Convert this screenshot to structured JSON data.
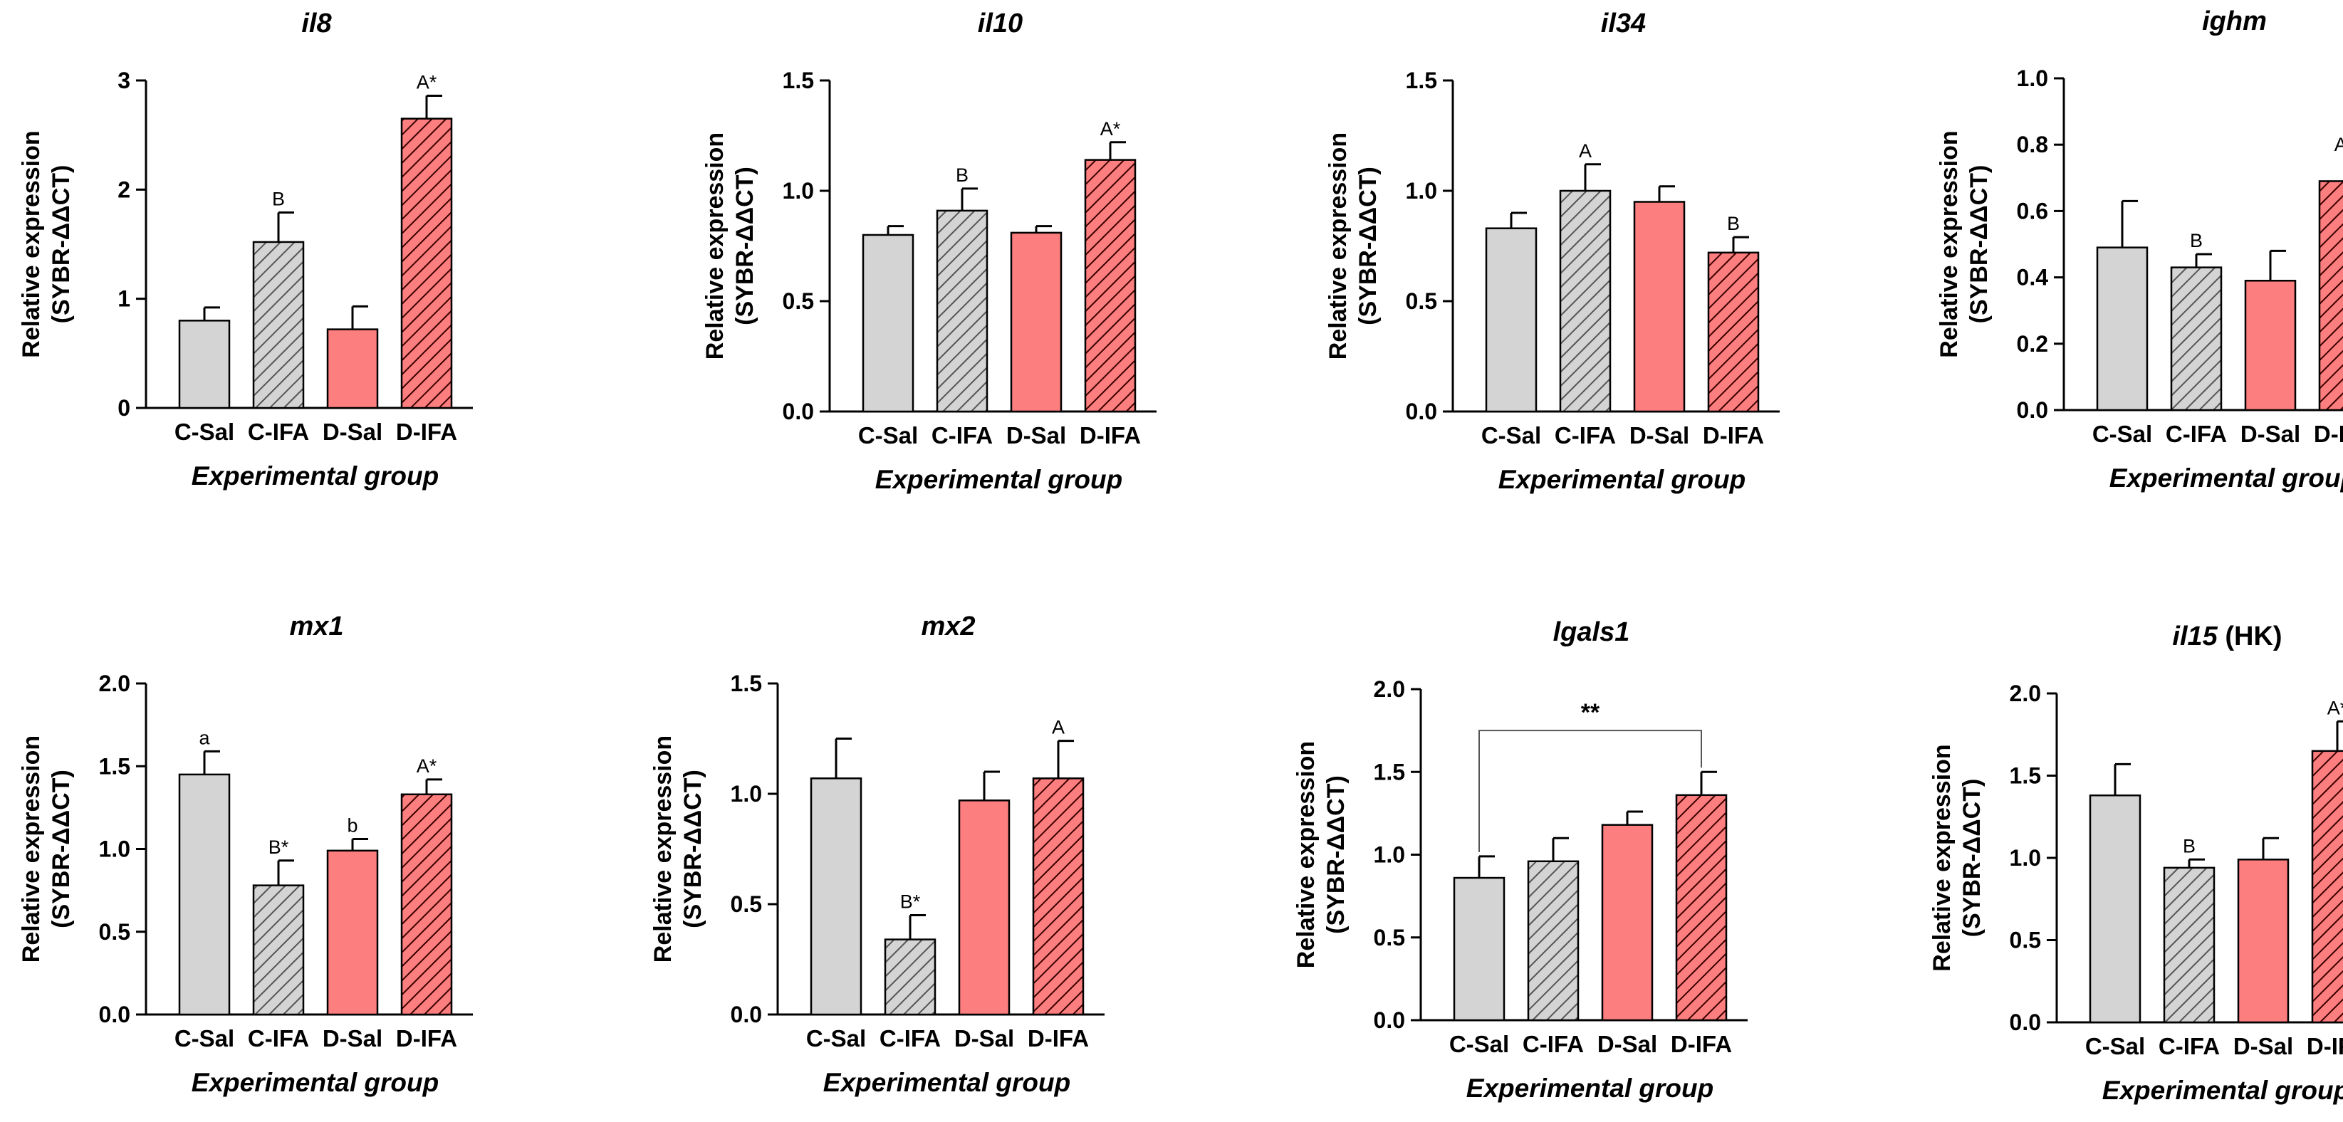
{
  "figure": {
    "background": "#ffffff"
  },
  "styles": {
    "control_fill": "#d4d4d4",
    "diet_fill": "#fd7e7e",
    "stroke": "#000000",
    "hatch_stroke_control": "#555555",
    "hatch_stroke_diet": "#3a0000"
  },
  "chart_data": [
    {
      "type": "bar",
      "title": "il8",
      "title_suffix": "",
      "xlabel": "Experimental group",
      "ylabel": [
        "Relative expression",
        "(SYBR-ΔΔCT)"
      ],
      "categories": [
        "C-Sal",
        "C-IFA",
        "D-Sal",
        "D-IFA"
      ],
      "values": [
        0.8,
        1.52,
        0.72,
        2.65
      ],
      "errors": [
        0.12,
        0.27,
        0.21,
        0.21
      ],
      "annotations": [
        "",
        "B",
        "",
        "A*"
      ],
      "ylim": [
        0,
        3
      ],
      "yticks": [
        "0",
        "1",
        "2",
        "3"
      ]
    },
    {
      "type": "bar",
      "title": "il10",
      "title_suffix": "",
      "xlabel": "Experimental group",
      "ylabel": [
        "Relative expression",
        "(SYBR-ΔΔCT)"
      ],
      "categories": [
        "C-Sal",
        "C-IFA",
        "D-Sal",
        "D-IFA"
      ],
      "values": [
        0.8,
        0.91,
        0.81,
        1.14
      ],
      "errors": [
        0.04,
        0.1,
        0.03,
        0.08
      ],
      "annotations": [
        "",
        "B",
        "",
        "A*"
      ],
      "ylim": [
        0,
        1.5
      ],
      "yticks": [
        "0.0",
        "0.5",
        "1.0",
        "1.5"
      ]
    },
    {
      "type": "bar",
      "title": "il34",
      "title_suffix": "",
      "xlabel": "Experimental group",
      "ylabel": [
        "Relative expression",
        "(SYBR-ΔΔCT)"
      ],
      "categories": [
        "C-Sal",
        "C-IFA",
        "D-Sal",
        "D-IFA"
      ],
      "values": [
        0.83,
        1.0,
        0.95,
        0.72
      ],
      "errors": [
        0.07,
        0.12,
        0.07,
        0.07
      ],
      "annotations": [
        "",
        "A",
        "",
        "B"
      ],
      "ylim": [
        0,
        1.5
      ],
      "yticks": [
        "0.0",
        "0.5",
        "1.0",
        "1.5"
      ]
    },
    {
      "type": "bar",
      "title": "ighm",
      "title_suffix": "",
      "xlabel": "Experimental group",
      "ylabel": [
        "Relative expression",
        "(SYBR-ΔΔCT)"
      ],
      "categories": [
        "C-Sal",
        "C-IFA",
        "D-Sal",
        "D-IFA"
      ],
      "values": [
        0.49,
        0.43,
        0.39,
        0.69
      ],
      "errors": [
        0.14,
        0.04,
        0.09,
        0.07
      ],
      "annotations": [
        "",
        "B",
        "",
        "A*"
      ],
      "ylim": [
        0,
        1.0
      ],
      "yticks": [
        "0.0",
        "0.2",
        "0.4",
        "0.6",
        "0.8",
        "1.0"
      ]
    },
    {
      "type": "bar",
      "title": "mx1",
      "title_suffix": "",
      "xlabel": "Experimental group",
      "ylabel": [
        "Relative expression",
        "(SYBR-ΔΔCT)"
      ],
      "categories": [
        "C-Sal",
        "C-IFA",
        "D-Sal",
        "D-IFA"
      ],
      "values": [
        1.45,
        0.78,
        0.99,
        1.33
      ],
      "errors": [
        0.14,
        0.15,
        0.07,
        0.09
      ],
      "annotations": [
        "a",
        "B*",
        "b",
        "A*"
      ],
      "ylim": [
        0,
        2.0
      ],
      "yticks": [
        "0.0",
        "0.5",
        "1.0",
        "1.5",
        "2.0"
      ]
    },
    {
      "type": "bar",
      "title": "mx2",
      "title_suffix": "",
      "xlabel": "Experimental group",
      "ylabel": [
        "Relative expression",
        "(SYBR-ΔΔCT)"
      ],
      "categories": [
        "C-Sal",
        "C-IFA",
        "D-Sal",
        "D-IFA"
      ],
      "values": [
        1.07,
        0.34,
        0.97,
        1.07
      ],
      "errors": [
        0.18,
        0.11,
        0.13,
        0.17
      ],
      "annotations": [
        "",
        "B*",
        "",
        "A"
      ],
      "ylim": [
        0,
        1.5
      ],
      "yticks": [
        "0.0",
        "0.5",
        "1.0",
        "1.5"
      ]
    },
    {
      "type": "bar",
      "title": "lgals1",
      "title_suffix": "",
      "xlabel": "Experimental group",
      "ylabel": [
        "Relative expression",
        "(SYBR-ΔΔCT)"
      ],
      "categories": [
        "C-Sal",
        "C-IFA",
        "D-Sal",
        "D-IFA"
      ],
      "values": [
        0.86,
        0.96,
        1.18,
        1.36
      ],
      "errors": [
        0.13,
        0.14,
        0.08,
        0.14
      ],
      "annotations": [
        "",
        "",
        "",
        ""
      ],
      "significance": {
        "from": 0,
        "to": 3,
        "label": "**",
        "level": 1.75
      },
      "ylim": [
        0,
        2.0
      ],
      "yticks": [
        "0.0",
        "0.5",
        "1.0",
        "1.5",
        "2.0"
      ]
    },
    {
      "type": "bar",
      "title": "il15",
      "title_suffix": " (HK)",
      "xlabel": "Experimental group",
      "ylabel": [
        "Relative expression",
        "(SYBR-ΔΔCT)"
      ],
      "categories": [
        "C-Sal",
        "C-IFA",
        "D-Sal",
        "D-IFA"
      ],
      "values": [
        1.38,
        0.94,
        0.99,
        1.65
      ],
      "errors": [
        0.19,
        0.05,
        0.13,
        0.18
      ],
      "annotations": [
        "",
        "B",
        "",
        "A*"
      ],
      "ylim": [
        0,
        2.0
      ],
      "yticks": [
        "0.0",
        "0.5",
        "1.0",
        "1.5",
        "2.0"
      ]
    }
  ]
}
